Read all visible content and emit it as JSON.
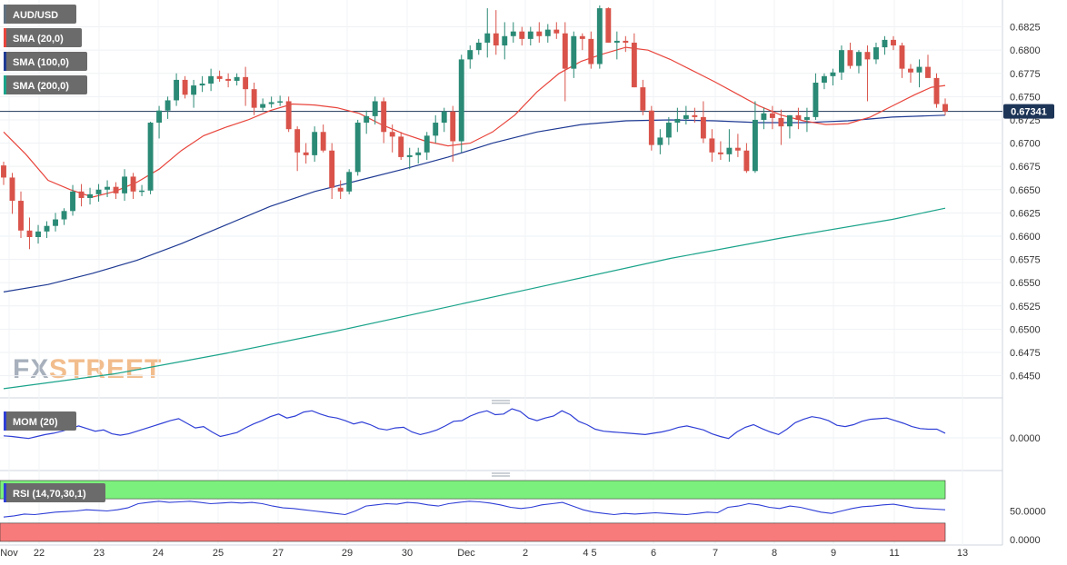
{
  "chart_data": [
    {
      "type": "candlestick",
      "symbol": "AUD/USD",
      "y_ticks": [
        "0.6825",
        "0.6800",
        "0.6775",
        "0.6750",
        "0.6725",
        "0.6700",
        "0.6675",
        "0.6650",
        "0.6625",
        "0.6600",
        "0.6575",
        "0.6550",
        "0.6525",
        "0.6500",
        "0.6475",
        "0.6450"
      ],
      "ylim": [
        0.6432,
        0.6848
      ],
      "last_price_label": "0.67341",
      "last_price": 0.67341,
      "x_labels": [
        "Nov",
        "22",
        "23",
        "24",
        "25",
        "27",
        "29",
        "30",
        "Dec",
        "2",
        "4 5",
        "6",
        "7",
        "8",
        "9",
        "11",
        "13"
      ],
      "legend": [
        {
          "label": "AUD/USD",
          "color": "#607080"
        },
        {
          "label": "SMA (20,0)",
          "color": "#e8453c"
        },
        {
          "label": "SMA (100,0)",
          "color": "#1f3a93"
        },
        {
          "label": "SMA (200,0)",
          "color": "#1aa38a"
        }
      ],
      "candles": [
        [
          0.6676,
          0.668,
          0.6655,
          0.6663
        ],
        [
          0.6663,
          0.6668,
          0.6624,
          0.6638
        ],
        [
          0.6638,
          0.6648,
          0.6598,
          0.6606
        ],
        [
          0.6606,
          0.662,
          0.6586,
          0.6599
        ],
        [
          0.6599,
          0.6612,
          0.6592,
          0.6605
        ],
        [
          0.6605,
          0.6616,
          0.6598,
          0.6611
        ],
        [
          0.6611,
          0.6625,
          0.6605,
          0.6618
        ],
        [
          0.6618,
          0.663,
          0.6612,
          0.6627
        ],
        [
          0.6627,
          0.6655,
          0.6622,
          0.6648
        ],
        [
          0.6648,
          0.6656,
          0.6632,
          0.6641
        ],
        [
          0.6641,
          0.6652,
          0.6634,
          0.6645
        ],
        [
          0.6645,
          0.6656,
          0.6637,
          0.665
        ],
        [
          0.665,
          0.666,
          0.6642,
          0.6653
        ],
        [
          0.6653,
          0.6658,
          0.664,
          0.6646
        ],
        [
          0.6646,
          0.6672,
          0.6638,
          0.6664
        ],
        [
          0.6664,
          0.6668,
          0.664,
          0.6648
        ],
        [
          0.6648,
          0.6655,
          0.6643,
          0.6649
        ],
        [
          0.6649,
          0.6723,
          0.6645,
          0.6722
        ],
        [
          0.6722,
          0.674,
          0.6705,
          0.6735
        ],
        [
          0.6735,
          0.675,
          0.6726,
          0.6746
        ],
        [
          0.6746,
          0.6775,
          0.674,
          0.6768
        ],
        [
          0.6768,
          0.6772,
          0.6748,
          0.6752
        ],
        [
          0.6752,
          0.6768,
          0.6738,
          0.6762
        ],
        [
          0.6762,
          0.6772,
          0.6755,
          0.6764
        ],
        [
          0.6764,
          0.678,
          0.6756,
          0.6772
        ],
        [
          0.6772,
          0.6778,
          0.6766,
          0.6769
        ],
        [
          0.6769,
          0.6775,
          0.676,
          0.6767
        ],
        [
          0.6767,
          0.6775,
          0.6762,
          0.6771
        ],
        [
          0.6771,
          0.6782,
          0.674,
          0.6758
        ],
        [
          0.6758,
          0.6765,
          0.673,
          0.6738
        ],
        [
          0.6738,
          0.6748,
          0.6735,
          0.6742
        ],
        [
          0.6742,
          0.675,
          0.6738,
          0.6744
        ],
        [
          0.6744,
          0.6751,
          0.674,
          0.6745
        ],
        [
          0.6745,
          0.675,
          0.6712,
          0.6715
        ],
        [
          0.6715,
          0.6718,
          0.667,
          0.669
        ],
        [
          0.669,
          0.67,
          0.6678,
          0.6687
        ],
        [
          0.6687,
          0.6718,
          0.668,
          0.6712
        ],
        [
          0.6712,
          0.672,
          0.669,
          0.6692
        ],
        [
          0.6692,
          0.67,
          0.664,
          0.6652
        ],
        [
          0.6652,
          0.666,
          0.664,
          0.6648
        ],
        [
          0.6648,
          0.6672,
          0.6645,
          0.6669
        ],
        [
          0.6669,
          0.6725,
          0.6665,
          0.6722
        ],
        [
          0.6722,
          0.6735,
          0.671,
          0.6729
        ],
        [
          0.6729,
          0.675,
          0.672,
          0.6745
        ],
        [
          0.6745,
          0.6749,
          0.67,
          0.6712
        ],
        [
          0.6712,
          0.672,
          0.669,
          0.6707
        ],
        [
          0.6707,
          0.6712,
          0.6682,
          0.6685
        ],
        [
          0.6685,
          0.6695,
          0.6672,
          0.6687
        ],
        [
          0.6687,
          0.6695,
          0.6678,
          0.669
        ],
        [
          0.669,
          0.6712,
          0.6682,
          0.6708
        ],
        [
          0.6708,
          0.673,
          0.67,
          0.6722
        ],
        [
          0.6722,
          0.6738,
          0.6712,
          0.6734
        ],
        [
          0.6734,
          0.674,
          0.668,
          0.6702
        ],
        [
          0.6702,
          0.6795,
          0.669,
          0.679
        ],
        [
          0.679,
          0.6805,
          0.678,
          0.68
        ],
        [
          0.68,
          0.6812,
          0.6795,
          0.6808
        ],
        [
          0.6808,
          0.6845,
          0.6792,
          0.6818
        ],
        [
          0.6818,
          0.6843,
          0.6795,
          0.6805
        ],
        [
          0.6805,
          0.683,
          0.679,
          0.6815
        ],
        [
          0.6815,
          0.683,
          0.6808,
          0.682
        ],
        [
          0.682,
          0.6825,
          0.6805,
          0.6812
        ],
        [
          0.6812,
          0.6825,
          0.6805,
          0.682
        ],
        [
          0.682,
          0.683,
          0.6808,
          0.6815
        ],
        [
          0.6815,
          0.6828,
          0.6808,
          0.6822
        ],
        [
          0.6822,
          0.683,
          0.6812,
          0.6818
        ],
        [
          0.6818,
          0.683,
          0.6745,
          0.678
        ],
        [
          0.678,
          0.682,
          0.677,
          0.6815
        ],
        [
          0.6815,
          0.6818,
          0.68,
          0.6812
        ],
        [
          0.6812,
          0.682,
          0.678,
          0.6785
        ],
        [
          0.6785,
          0.6848,
          0.678,
          0.6845
        ],
        [
          0.6845,
          0.6846,
          0.6808,
          0.6808
        ],
        [
          0.6808,
          0.682,
          0.679,
          0.681
        ],
        [
          0.681,
          0.6815,
          0.6798,
          0.6808
        ],
        [
          0.6808,
          0.6818,
          0.676,
          0.676
        ],
        [
          0.676,
          0.6768,
          0.673,
          0.6735
        ],
        [
          0.6735,
          0.674,
          0.6692,
          0.6698
        ],
        [
          0.6698,
          0.6715,
          0.6688,
          0.6706
        ],
        [
          0.6706,
          0.6728,
          0.6698,
          0.6722
        ],
        [
          0.6722,
          0.6738,
          0.6712,
          0.6726
        ],
        [
          0.6726,
          0.674,
          0.672,
          0.673
        ],
        [
          0.673,
          0.6738,
          0.6722,
          0.6728
        ],
        [
          0.6728,
          0.6745,
          0.67,
          0.6705
        ],
        [
          0.6705,
          0.6715,
          0.668,
          0.669
        ],
        [
          0.669,
          0.6702,
          0.6682,
          0.6688
        ],
        [
          0.6688,
          0.6715,
          0.668,
          0.6695
        ],
        [
          0.6695,
          0.671,
          0.6685,
          0.6692
        ],
        [
          0.6692,
          0.67,
          0.6668,
          0.667
        ],
        [
          0.667,
          0.6745,
          0.6668,
          0.6725
        ],
        [
          0.6725,
          0.6738,
          0.6715,
          0.6732
        ],
        [
          0.6732,
          0.674,
          0.6715,
          0.6727
        ],
        [
          0.6727,
          0.6736,
          0.6698,
          0.6718
        ],
        [
          0.6718,
          0.673,
          0.6705,
          0.673
        ],
        [
          0.673,
          0.6738,
          0.6715,
          0.6725
        ],
        [
          0.6725,
          0.6738,
          0.6712,
          0.6728
        ],
        [
          0.6728,
          0.6775,
          0.6725,
          0.6765
        ],
        [
          0.6765,
          0.6775,
          0.6758,
          0.6772
        ],
        [
          0.6772,
          0.678,
          0.6762,
          0.6776
        ],
        [
          0.6776,
          0.6805,
          0.6768,
          0.68
        ],
        [
          0.68,
          0.6808,
          0.678,
          0.6783
        ],
        [
          0.6783,
          0.68,
          0.6775,
          0.6798
        ],
        [
          0.6798,
          0.6805,
          0.6745,
          0.679
        ],
        [
          0.679,
          0.6808,
          0.6785,
          0.6803
        ],
        [
          0.6803,
          0.6815,
          0.6795,
          0.6811
        ],
        [
          0.6811,
          0.6815,
          0.68,
          0.6805
        ],
        [
          0.6805,
          0.6808,
          0.677,
          0.678
        ],
        [
          0.678,
          0.6785,
          0.6765,
          0.6776
        ],
        [
          0.6776,
          0.679,
          0.676,
          0.6782
        ],
        [
          0.6782,
          0.6795,
          0.6772,
          0.677
        ],
        [
          0.677,
          0.6775,
          0.6738,
          0.6742
        ],
        [
          0.6742,
          0.6748,
          0.673,
          0.6734
        ]
      ],
      "sma20": [
        [
          0,
          0.6712
        ],
        [
          8,
          0.6688
        ],
        [
          16,
          0.666
        ],
        [
          24,
          0.665
        ],
        [
          32,
          0.6642
        ],
        [
          40,
          0.6648
        ],
        [
          48,
          0.6658
        ],
        [
          56,
          0.6672
        ],
        [
          64,
          0.6692
        ],
        [
          72,
          0.6708
        ],
        [
          80,
          0.6717
        ],
        [
          88,
          0.6725
        ],
        [
          96,
          0.6735
        ],
        [
          104,
          0.6742
        ],
        [
          112,
          0.6741
        ],
        [
          120,
          0.6738
        ],
        [
          128,
          0.6732
        ],
        [
          136,
          0.672
        ],
        [
          144,
          0.671
        ],
        [
          152,
          0.6702
        ],
        [
          160,
          0.6697
        ],
        [
          168,
          0.67
        ],
        [
          176,
          0.6712
        ],
        [
          184,
          0.673
        ],
        [
          192,
          0.6755
        ],
        [
          200,
          0.6775
        ],
        [
          208,
          0.6788
        ],
        [
          216,
          0.6796
        ],
        [
          224,
          0.6803
        ],
        [
          232,
          0.68
        ],
        [
          240,
          0.679
        ],
        [
          248,
          0.6778
        ],
        [
          256,
          0.6766
        ],
        [
          264,
          0.6753
        ],
        [
          272,
          0.674
        ],
        [
          280,
          0.673
        ],
        [
          288,
          0.6724
        ],
        [
          296,
          0.672
        ],
        [
          304,
          0.6721
        ],
        [
          312,
          0.6728
        ],
        [
          320,
          0.674
        ],
        [
          328,
          0.6752
        ],
        [
          334,
          0.676
        ],
        [
          339,
          0.6762
        ]
      ],
      "sma100": [
        [
          0,
          0.654
        ],
        [
          16,
          0.6548
        ],
        [
          32,
          0.656
        ],
        [
          48,
          0.6574
        ],
        [
          64,
          0.6592
        ],
        [
          80,
          0.6612
        ],
        [
          96,
          0.6632
        ],
        [
          112,
          0.6648
        ],
        [
          128,
          0.666
        ],
        [
          144,
          0.6672
        ],
        [
          160,
          0.6685
        ],
        [
          176,
          0.67
        ],
        [
          192,
          0.6712
        ],
        [
          208,
          0.672
        ],
        [
          224,
          0.6724
        ],
        [
          240,
          0.6725
        ],
        [
          256,
          0.6724
        ],
        [
          272,
          0.6722
        ],
        [
          288,
          0.6722
        ],
        [
          304,
          0.6724
        ],
        [
          320,
          0.6728
        ],
        [
          339,
          0.673
        ]
      ],
      "sma200": [
        [
          0,
          0.6436
        ],
        [
          40,
          0.6452
        ],
        [
          80,
          0.6474
        ],
        [
          120,
          0.6498
        ],
        [
          160,
          0.6524
        ],
        [
          200,
          0.655
        ],
        [
          240,
          0.6576
        ],
        [
          280,
          0.6598
        ],
        [
          320,
          0.6618
        ],
        [
          339,
          0.663
        ]
      ]
    },
    {
      "type": "line",
      "name": "MOM (20)",
      "y_ticks": [
        "0.0000"
      ],
      "y0_value": 0,
      "color": "#2f3fd6",
      "values": [
        0.006,
        0.004,
        0.001,
        -0.002,
        0.004,
        0.01,
        0.014,
        0.02,
        0.028,
        0.036,
        0.028,
        0.02,
        0.024,
        0.012,
        0.008,
        0.012,
        0.02,
        0.028,
        0.036,
        0.044,
        0.052,
        0.058,
        0.044,
        0.03,
        0.034,
        0.018,
        0.004,
        0.01,
        0.016,
        0.03,
        0.042,
        0.052,
        0.064,
        0.072,
        0.06,
        0.066,
        0.078,
        0.082,
        0.072,
        0.064,
        0.06,
        0.052,
        0.042,
        0.048,
        0.04,
        0.028,
        0.024,
        0.03,
        0.032,
        0.018,
        0.01,
        0.016,
        0.024,
        0.036,
        0.05,
        0.052,
        0.066,
        0.076,
        0.082,
        0.07,
        0.072,
        0.088,
        0.08,
        0.06,
        0.052,
        0.06,
        0.066,
        0.082,
        0.07,
        0.05,
        0.04,
        0.026,
        0.02,
        0.018,
        0.016,
        0.014,
        0.012,
        0.01,
        0.014,
        0.018,
        0.024,
        0.032,
        0.036,
        0.03,
        0.024,
        0.012,
        0.004,
        -0.002,
        0.018,
        0.032,
        0.04,
        0.028,
        0.018,
        0.01,
        0.026,
        0.046,
        0.056,
        0.064,
        0.06,
        0.052,
        0.038,
        0.034,
        0.04,
        0.05,
        0.056,
        0.058,
        0.06,
        0.052,
        0.044,
        0.034,
        0.028,
        0.026,
        0.026,
        0.014
      ]
    },
    {
      "type": "line",
      "name": "RSI (14,70,30,1)",
      "y_ticks": [
        "50.0000",
        "0.0000"
      ],
      "ylim": [
        0,
        100
      ],
      "color": "#2f3fd6",
      "values": [
        40,
        42,
        45,
        44,
        46,
        48,
        49,
        50,
        52,
        51,
        50,
        52,
        55,
        62,
        64,
        66,
        64,
        65,
        66,
        64,
        62,
        63,
        64,
        63,
        64,
        62,
        58,
        55,
        54,
        52,
        50,
        48,
        46,
        44,
        50,
        58,
        60,
        62,
        61,
        64,
        63,
        60,
        58,
        62,
        64,
        66,
        65,
        63,
        60,
        56,
        54,
        56,
        60,
        62,
        64,
        58,
        52,
        48,
        46,
        44,
        46,
        45,
        46,
        47,
        46,
        45,
        44,
        46,
        48,
        47,
        56,
        58,
        62,
        60,
        56,
        54,
        58,
        56,
        52,
        48,
        46,
        50,
        54,
        57,
        58,
        60,
        61,
        58,
        55,
        54,
        53,
        52
      ]
    }
  ]
}
